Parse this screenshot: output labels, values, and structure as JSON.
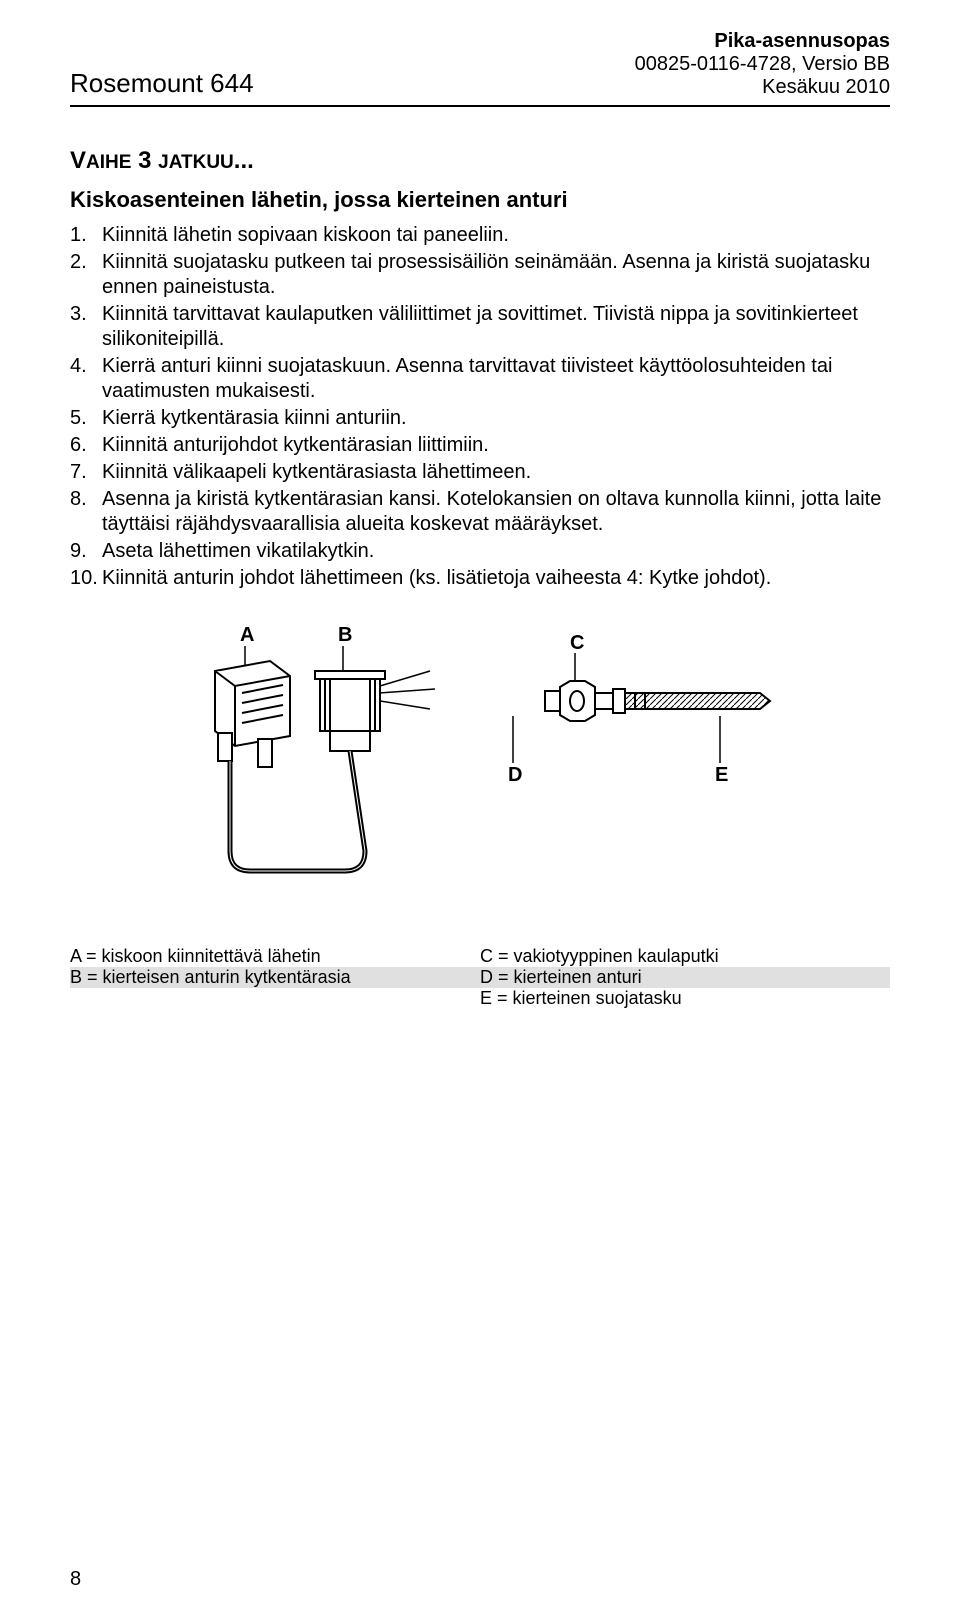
{
  "header": {
    "product": "Rosemount 644",
    "doc_title": "Pika-asennusopas",
    "doc_number": "00825-0116-4728, Versio BB",
    "date": "Kesäkuu 2010"
  },
  "section": {
    "heading_prefix": "V",
    "heading_rest": "AIHE",
    "heading_num": "3",
    "heading_cont": "JATKUU",
    "heading_dots": "...",
    "subtitle": "Kiskoasenteinen lähetin, jossa kierteinen anturi"
  },
  "steps": [
    {
      "n": "1.",
      "t": "Kiinnitä lähetin sopivaan kiskoon tai paneeliin."
    },
    {
      "n": "2.",
      "t": "Kiinnitä suojatasku putkeen tai prosessisäiliön seinämään. Asenna ja kiristä suojatasku ennen paineistusta."
    },
    {
      "n": "3.",
      "t": "Kiinnitä tarvittavat kaulaputken väliliittimet ja sovittimet. Tiivistä nippa ja sovitinkierteet silikoniteipillä."
    },
    {
      "n": "4.",
      "t": "Kierrä anturi kiinni suojataskuun. Asenna tarvittavat tiivisteet käyttöolosuhteiden tai vaatimusten mukaisesti."
    },
    {
      "n": "5.",
      "t": "Kierrä kytkentärasia kiinni anturiin."
    },
    {
      "n": "6.",
      "t": "Kiinnitä anturijohdot kytkentärasian liittimiin."
    },
    {
      "n": "7.",
      "t": "Kiinnitä välikaapeli kytkentärasiasta lähettimeen."
    },
    {
      "n": "8.",
      "t": "Asenna ja kiristä kytkentärasian kansi. Kotelokansien on oltava kunnolla kiinni, jotta laite täyttäisi räjähdysvaarallisia alueita koskevat määräykset."
    },
    {
      "n": "9.",
      "t": "Aseta lähettimen vikatilakytkin."
    },
    {
      "n": "10.",
      "t": "Kiinnitä anturin johdot lähettimeen (ks. lisätietoja vaiheesta 4: Kytke johdot)."
    }
  ],
  "diagram": {
    "labels": {
      "A": "A",
      "B": "B",
      "C": "C",
      "D": "D",
      "E": "E"
    }
  },
  "legend": {
    "left": [
      {
        "text": "A = kiskoon kiinnitettävä lähetin",
        "shaded": false
      },
      {
        "text": "B = kierteisen anturin kytkentärasia",
        "shaded": true
      },
      {
        "text": "",
        "shaded": false
      }
    ],
    "right": [
      {
        "text": "C = vakiotyyppinen kaulaputki",
        "shaded": false
      },
      {
        "text": "D = kierteinen anturi",
        "shaded": true
      },
      {
        "text": "E = kierteinen suojatasku",
        "shaded": false
      }
    ]
  },
  "page_number": "8",
  "colors": {
    "text": "#000000",
    "bg": "#ffffff",
    "shade": "#e0e0e0",
    "rule": "#000000"
  }
}
